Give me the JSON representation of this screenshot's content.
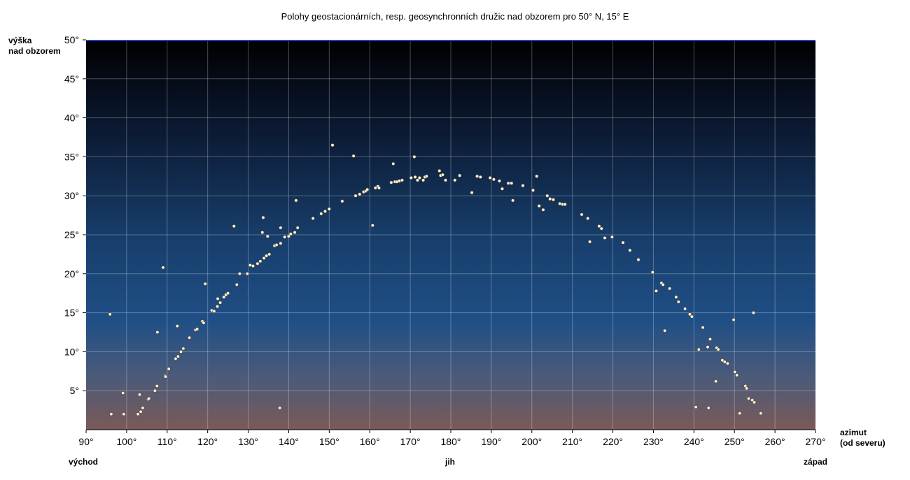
{
  "chart_data": {
    "type": "scatter",
    "title": "Polohy geostacionárních, resp. geosynchronních družic nad obzorem pro 50° N, 15° E",
    "ylabel": [
      "výška",
      "nad obzorem"
    ],
    "xlabel": [
      "azimut",
      "(od severu)"
    ],
    "direction_labels": {
      "east": "východ",
      "south": "jih",
      "west": "západ"
    },
    "xlim": [
      90,
      270
    ],
    "ylim": [
      0,
      50
    ],
    "xticks": [
      90,
      100,
      110,
      120,
      130,
      140,
      150,
      160,
      170,
      180,
      190,
      200,
      210,
      220,
      230,
      240,
      250,
      260,
      270
    ],
    "yticks": [
      5,
      10,
      15,
      20,
      25,
      30,
      35,
      40,
      45,
      50
    ],
    "tick_suffix": "°",
    "grid": true,
    "colors": {
      "sky_top": "#000000",
      "sky_mid": "#1c4a7e",
      "sky_bottom": "#7a5a58",
      "point": "#fff4dd",
      "point_edge": "#5a4a3a"
    },
    "points": [
      [
        95.9,
        14.8
      ],
      [
        96.2,
        2.0
      ],
      [
        99.1,
        4.7
      ],
      [
        99.3,
        2.0
      ],
      [
        102.8,
        2.0
      ],
      [
        103.2,
        4.5
      ],
      [
        103.5,
        2.3
      ],
      [
        104.0,
        2.8
      ],
      [
        105.3,
        3.9
      ],
      [
        105.5,
        4.0
      ],
      [
        107.0,
        5.0
      ],
      [
        107.5,
        5.6
      ],
      [
        107.6,
        12.5
      ],
      [
        109.0,
        20.8
      ],
      [
        109.5,
        6.9
      ],
      [
        109.6,
        6.8
      ],
      [
        110.4,
        7.8
      ],
      [
        112.1,
        9.1
      ],
      [
        112.5,
        13.3
      ],
      [
        112.7,
        9.4
      ],
      [
        113.4,
        10.0
      ],
      [
        114.0,
        10.4
      ],
      [
        115.5,
        11.8
      ],
      [
        117.0,
        12.8
      ],
      [
        117.4,
        12.9
      ],
      [
        118.7,
        13.9
      ],
      [
        119.0,
        13.7
      ],
      [
        119.4,
        18.7
      ],
      [
        121.0,
        15.3
      ],
      [
        121.6,
        15.2
      ],
      [
        122.4,
        15.8
      ],
      [
        122.5,
        16.8
      ],
      [
        123.1,
        16.3
      ],
      [
        124.0,
        17.0
      ],
      [
        124.5,
        17.3
      ],
      [
        125.0,
        17.5
      ],
      [
        126.5,
        26.1
      ],
      [
        127.2,
        18.6
      ],
      [
        127.9,
        20.0
      ],
      [
        129.8,
        20.0
      ],
      [
        130.5,
        21.1
      ],
      [
        131.2,
        21.0
      ],
      [
        132.3,
        21.3
      ],
      [
        133.0,
        21.6
      ],
      [
        133.5,
        25.3
      ],
      [
        133.7,
        27.2
      ],
      [
        133.9,
        22.0
      ],
      [
        134.5,
        22.3
      ],
      [
        134.8,
        24.8
      ],
      [
        135.2,
        22.5
      ],
      [
        136.5,
        23.6
      ],
      [
        137.0,
        23.7
      ],
      [
        137.8,
        2.8
      ],
      [
        138.0,
        25.9
      ],
      [
        138.0,
        23.9
      ],
      [
        139.0,
        24.7
      ],
      [
        140.0,
        24.8
      ],
      [
        140.5,
        25.1
      ],
      [
        141.5,
        25.3
      ],
      [
        141.8,
        29.4
      ],
      [
        142.2,
        25.9
      ],
      [
        146.0,
        27.1
      ],
      [
        148.0,
        27.7
      ],
      [
        149.0,
        28.0
      ],
      [
        150.0,
        28.3
      ],
      [
        150.8,
        36.5
      ],
      [
        153.2,
        29.3
      ],
      [
        156.0,
        35.1
      ],
      [
        156.5,
        30.0
      ],
      [
        157.5,
        30.2
      ],
      [
        158.5,
        30.5
      ],
      [
        159.0,
        30.6
      ],
      [
        159.4,
        30.8
      ],
      [
        160.7,
        26.2
      ],
      [
        161.4,
        31.0
      ],
      [
        162.0,
        31.2
      ],
      [
        162.3,
        31.0
      ],
      [
        165.3,
        31.7
      ],
      [
        165.8,
        34.1
      ],
      [
        166.2,
        31.8
      ],
      [
        166.7,
        31.8
      ],
      [
        167.3,
        31.9
      ],
      [
        168.0,
        32.0
      ],
      [
        170.2,
        32.3
      ],
      [
        171.0,
        35.0
      ],
      [
        171.2,
        32.4
      ],
      [
        171.8,
        32.0
      ],
      [
        172.3,
        32.3
      ],
      [
        173.2,
        32.0
      ],
      [
        173.6,
        32.4
      ],
      [
        174.0,
        32.5
      ],
      [
        177.2,
        33.2
      ],
      [
        177.5,
        32.6
      ],
      [
        178.0,
        32.7
      ],
      [
        178.7,
        32.0
      ],
      [
        181.0,
        32.0
      ],
      [
        182.2,
        32.6
      ],
      [
        185.2,
        30.4
      ],
      [
        186.5,
        32.5
      ],
      [
        187.3,
        32.4
      ],
      [
        189.7,
        32.3
      ],
      [
        190.6,
        32.1
      ],
      [
        192.0,
        31.9
      ],
      [
        192.7,
        30.9
      ],
      [
        194.2,
        31.6
      ],
      [
        195.3,
        29.4
      ],
      [
        195.0,
        31.6
      ],
      [
        197.8,
        31.3
      ],
      [
        200.3,
        30.7
      ],
      [
        201.2,
        32.5
      ],
      [
        201.8,
        28.7
      ],
      [
        202.8,
        28.2
      ],
      [
        203.8,
        30.0
      ],
      [
        204.5,
        29.6
      ],
      [
        205.3,
        29.5
      ],
      [
        206.9,
        29.0
      ],
      [
        207.6,
        28.9
      ],
      [
        208.2,
        28.9
      ],
      [
        212.3,
        27.6
      ],
      [
        213.8,
        27.1
      ],
      [
        214.3,
        24.1
      ],
      [
        216.6,
        26.1
      ],
      [
        217.2,
        25.8
      ],
      [
        218.0,
        24.6
      ],
      [
        219.8,
        24.7
      ],
      [
        222.5,
        24.0
      ],
      [
        224.2,
        23.0
      ],
      [
        226.3,
        21.8
      ],
      [
        229.8,
        20.2
      ],
      [
        230.7,
        17.8
      ],
      [
        232.0,
        18.8
      ],
      [
        232.4,
        18.6
      ],
      [
        232.8,
        12.7
      ],
      [
        234.0,
        18.1
      ],
      [
        235.6,
        17.0
      ],
      [
        236.2,
        16.4
      ],
      [
        237.8,
        15.5
      ],
      [
        239.0,
        14.8
      ],
      [
        239.5,
        14.5
      ],
      [
        240.5,
        2.9
      ],
      [
        241.2,
        10.3
      ],
      [
        242.2,
        13.1
      ],
      [
        243.4,
        10.6
      ],
      [
        243.6,
        2.8
      ],
      [
        244.0,
        11.6
      ],
      [
        245.4,
        6.2
      ],
      [
        245.6,
        10.5
      ],
      [
        246.0,
        10.3
      ],
      [
        247.0,
        8.9
      ],
      [
        247.6,
        8.7
      ],
      [
        248.3,
        8.5
      ],
      [
        249.8,
        14.1
      ],
      [
        250.1,
        7.4
      ],
      [
        250.6,
        7.0
      ],
      [
        251.3,
        2.1
      ],
      [
        252.7,
        5.6
      ],
      [
        253.0,
        5.3
      ],
      [
        253.5,
        4.0
      ],
      [
        254.4,
        3.8
      ],
      [
        254.7,
        15.0
      ],
      [
        254.9,
        3.5
      ],
      [
        256.5,
        2.1
      ]
    ]
  }
}
